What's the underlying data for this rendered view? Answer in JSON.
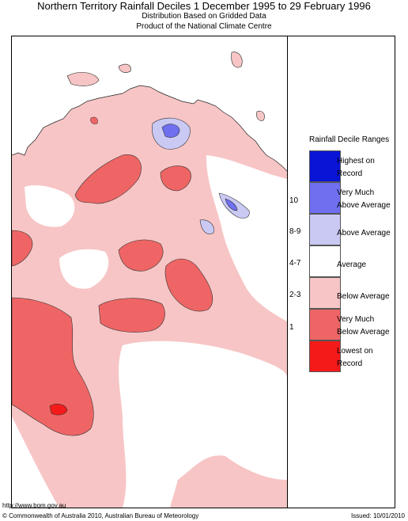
{
  "header": {
    "title": "Northern Territory Rainfall Deciles     1 December 1995 to 29 February 1996",
    "subtitle_1": "Distribution Based on Gridded Data",
    "subtitle_2": "Product of the National Climate Centre"
  },
  "legend": {
    "title": "Rainfall Decile Ranges",
    "items": [
      {
        "label_1": "Highest on",
        "label_2": "Record",
        "decile": "",
        "color": "#0a14d6"
      },
      {
        "label_1": "Very Much",
        "label_2": "Above Average",
        "decile": "10",
        "color": "#6f6ff0"
      },
      {
        "label_1": "Above Average",
        "label_2": "",
        "decile": "8-9",
        "color": "#c9c9f4"
      },
      {
        "label_1": "Average",
        "label_2": "",
        "decile": "4-7",
        "color": "#ffffff"
      },
      {
        "label_1": "Below Average",
        "label_2": "",
        "decile": "2-3",
        "color": "#f7c5c5"
      },
      {
        "label_1": "Very Much",
        "label_2": "Below Average",
        "decile": "1",
        "color": "#ef6565"
      },
      {
        "label_1": "Lowest on",
        "label_2": "Record",
        "decile": "",
        "color": "#f51a1a"
      }
    ]
  },
  "footer": {
    "url": "http://www.bom.gov.au",
    "copyright": "© Commonwealth of Australia 2010, Australian Bureau of Meteorology",
    "issued": "Issued: 10/01/2010"
  }
}
